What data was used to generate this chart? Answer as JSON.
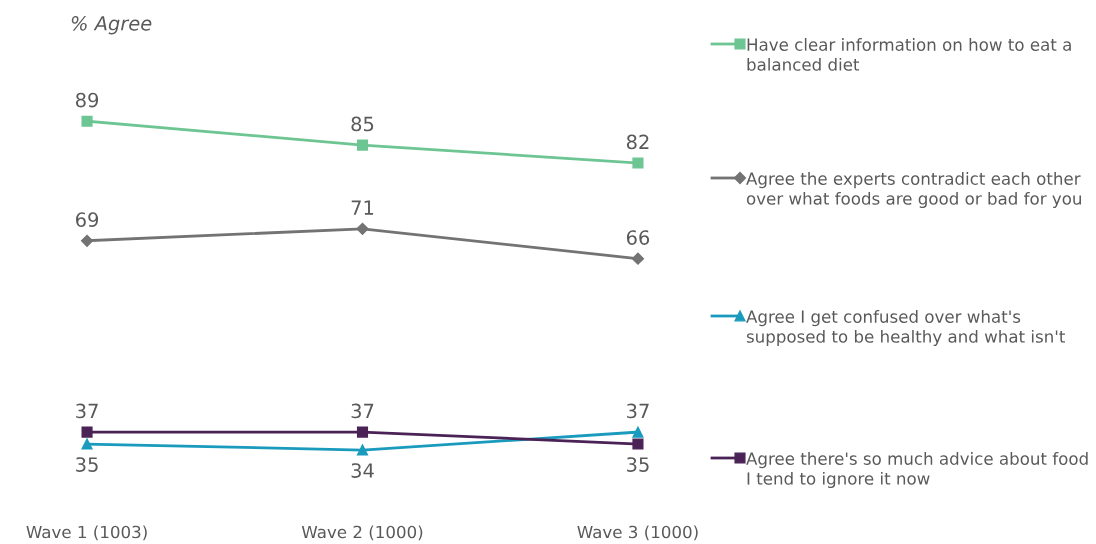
{
  "chart_data": {
    "type": "line",
    "ylabel": "% Agree",
    "categories": [
      "Wave 1 (1003)",
      "Wave 2 (1000)",
      "Wave 3 (1000)"
    ],
    "series": [
      {
        "name": "Have clear information on how to eat a balanced diet",
        "color": "#6cc592",
        "marker": "square",
        "values": [
          89,
          85,
          82
        ]
      },
      {
        "name": "Agree the experts contradict each other over what foods are good or bad for you",
        "color": "#737373",
        "marker": "diamond",
        "values": [
          69,
          71,
          66
        ]
      },
      {
        "name": "Agree I get confused over what's supposed to be healthy and what isn't",
        "color": "#1a9bbd",
        "marker": "triangle",
        "values": [
          35,
          34,
          37
        ]
      },
      {
        "name": "Agree there's so much advice about food I tend to ignore it now",
        "color": "#4a2255",
        "marker": "square",
        "values": [
          37,
          37,
          35
        ]
      }
    ],
    "data_labels": true,
    "legend": "right",
    "grid": false
  }
}
